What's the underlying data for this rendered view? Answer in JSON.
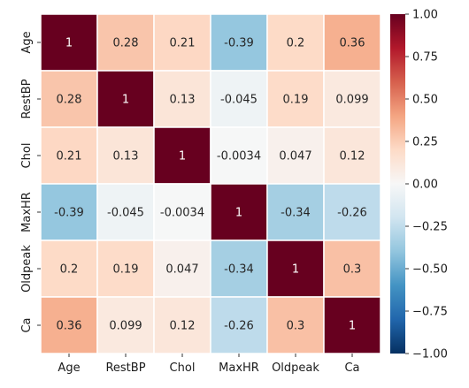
{
  "chart_data": {
    "type": "heatmap",
    "title": "",
    "xlabel": "",
    "ylabel": "",
    "variables": [
      "Age",
      "RestBP",
      "Chol",
      "MaxHR",
      "Oldpeak",
      "Ca"
    ],
    "matrix": [
      [
        1,
        0.28,
        0.21,
        -0.39,
        0.2,
        0.36
      ],
      [
        0.28,
        1,
        0.13,
        -0.045,
        0.19,
        0.099
      ],
      [
        0.21,
        0.13,
        1,
        -0.0034,
        0.047,
        0.12
      ],
      [
        -0.39,
        -0.045,
        -0.0034,
        1,
        -0.34,
        -0.26
      ],
      [
        0.2,
        0.19,
        0.047,
        -0.34,
        1,
        0.3
      ],
      [
        0.36,
        0.099,
        0.12,
        -0.26,
        0.3,
        1
      ]
    ],
    "annotations": [
      [
        "1",
        "0.28",
        "0.21",
        "-0.39",
        "0.2",
        "0.36"
      ],
      [
        "0.28",
        "1",
        "0.13",
        "-0.045",
        "0.19",
        "0.099"
      ],
      [
        "0.21",
        "0.13",
        "1",
        "-0.0034",
        "0.047",
        "0.12"
      ],
      [
        "-0.39",
        "-0.045",
        "-0.0034",
        "1",
        "-0.34",
        "-0.26"
      ],
      [
        "0.2",
        "0.19",
        "0.047",
        "-0.34",
        "1",
        "0.3"
      ],
      [
        "0.36",
        "0.099",
        "0.12",
        "-0.26",
        "0.3",
        "1"
      ]
    ],
    "colorbar": {
      "range": [
        -1,
        1
      ],
      "tick_values": [
        1,
        0.75,
        0.5,
        0.25,
        0,
        -0.25,
        -0.5,
        -0.75,
        -1
      ],
      "tick_labels": [
        "1.00",
        "0.75",
        "0.50",
        "0.25",
        "0.00",
        "−0.25",
        "−0.50",
        "−0.75",
        "−1.00"
      ],
      "colormap": "RdBu_r",
      "stops": [
        "#053061",
        "#2166ac",
        "#4393c3",
        "#92c5de",
        "#d1e5f0",
        "#f7f7f7",
        "#fddbc7",
        "#f4a582",
        "#d6604d",
        "#b2182b",
        "#67001f"
      ]
    },
    "grid": true,
    "legend": "none"
  }
}
